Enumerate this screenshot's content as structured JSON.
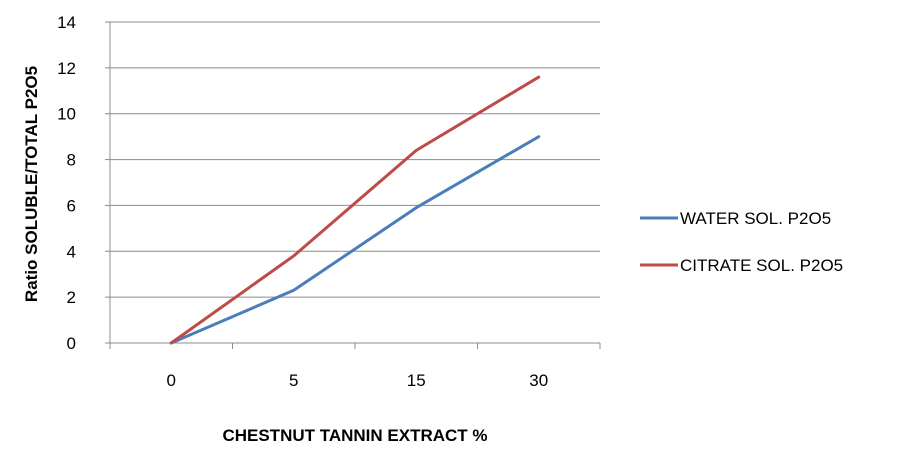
{
  "chart_data": {
    "type": "line",
    "title": "",
    "xlabel": "CHESTNUT TANNIN EXTRACT %",
    "ylabel": "Ratio SOLUBLE/TOTAL  P2O5",
    "categories": [
      "0",
      "5",
      "15",
      "30"
    ],
    "ylim": [
      0,
      14
    ],
    "yticks": [
      "0",
      "2",
      "4",
      "6",
      "8",
      "10",
      "12",
      "14"
    ],
    "grid": true,
    "legend_position": "right",
    "series": [
      {
        "name": "WATER SOL. P2O5",
        "color": "#4a7ebb",
        "values": [
          0,
          2.3,
          5.9,
          9.0
        ]
      },
      {
        "name": "CITRATE SOL. P2O5",
        "color": "#be4b48",
        "values": [
          0,
          3.8,
          8.4,
          11.6
        ]
      }
    ]
  }
}
